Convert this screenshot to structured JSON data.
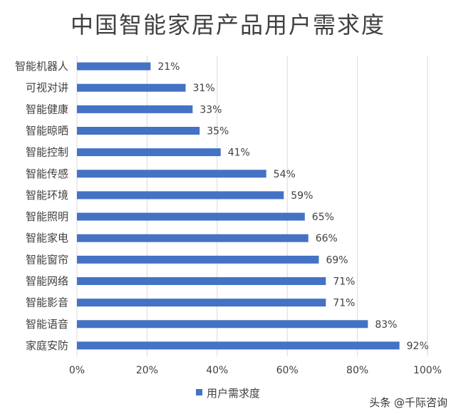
{
  "chart_data": {
    "type": "bar",
    "orientation": "horizontal",
    "title": "中国智能家居产品用户需求度",
    "categories": [
      "智能机器人",
      "可视对讲",
      "智能健康",
      "智能晾晒",
      "智能控制",
      "智能传感",
      "智能环境",
      "智能照明",
      "智能家电",
      "智能窗帘",
      "智能网络",
      "智能影音",
      "智能语音",
      "家庭安防"
    ],
    "series": [
      {
        "name": "用户需求度",
        "values": [
          21,
          31,
          33,
          35,
          41,
          54,
          59,
          65,
          66,
          69,
          71,
          71,
          83,
          92
        ],
        "labels": [
          "21%",
          "31%",
          "33%",
          "35%",
          "41%",
          "54%",
          "59%",
          "65%",
          "66%",
          "69%",
          "71%",
          "71%",
          "83%",
          "92%"
        ]
      }
    ],
    "xlim": [
      0,
      100
    ],
    "x_ticks": [
      "0%",
      "20%",
      "40%",
      "60%",
      "80%",
      "100%"
    ],
    "x_tick_values": [
      0,
      20,
      40,
      60,
      80,
      100
    ],
    "grid": true,
    "legend_position": "bottom",
    "bar_color": "#4472c4"
  },
  "watermark": "头条 @千际咨询"
}
